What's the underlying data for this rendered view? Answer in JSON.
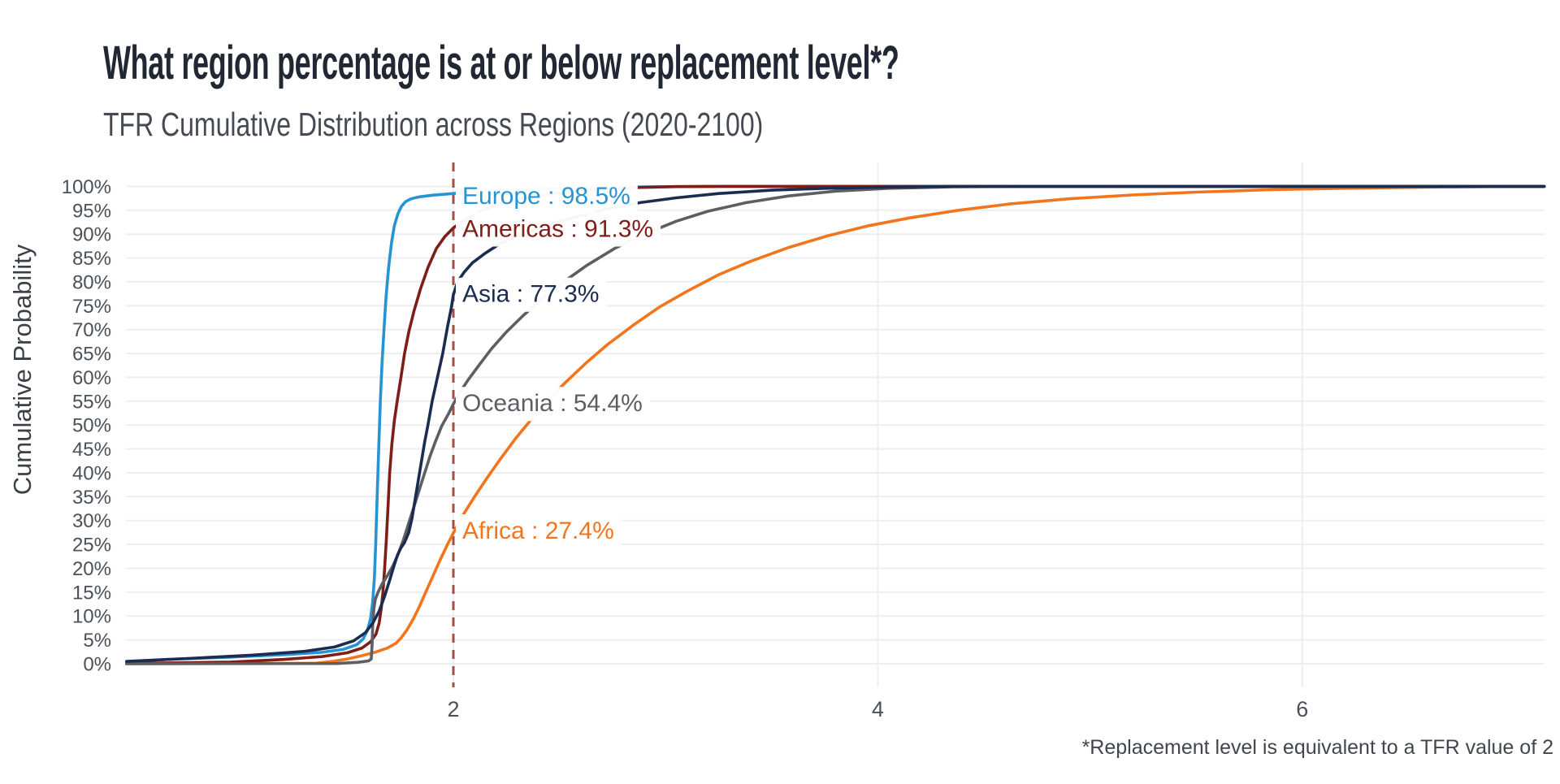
{
  "header": {
    "title": "What region percentage is at or below replacement level*?",
    "subtitle": "TFR Cumulative Distribution across Regions (2020-2100)"
  },
  "footnote": "*Replacement level is equivalent to a TFR value of 2",
  "y_axis": {
    "label": "Cumulative Probability",
    "tick_values": [
      100,
      95,
      90,
      85,
      80,
      75,
      70,
      65,
      60,
      55,
      50,
      45,
      40,
      35,
      30,
      25,
      20,
      15,
      10,
      5,
      0
    ],
    "tick_suffix": "%"
  },
  "x_axis": {
    "tick_values": [
      2,
      4,
      6
    ]
  },
  "reference_line": {
    "x": 2,
    "style": "dashed",
    "color": "#9d5046",
    "meaning": "replacement level TFR = 2"
  },
  "colors": {
    "grid": "#edeef0",
    "tick_text": "#4b5158",
    "axis_title_text": "#3b4047",
    "footnote_text": "#41464d",
    "title_text": "#212733",
    "subtitle_text": "#454a52",
    "background": "#ffffff"
  },
  "chart_data": {
    "type": "line",
    "title": "TFR Cumulative Distribution across Regions (2020-2100)",
    "xlabel": "",
    "ylabel": "Cumulative Probability",
    "xlim": [
      0.46,
      7.14
    ],
    "ylim": [
      0,
      100
    ],
    "x_ticks": [
      2,
      4,
      6
    ],
    "y_tick_step": 5,
    "grid": "horizontal every 5%, vertical at x ticks",
    "legend_position": "inline labels right of reference line",
    "series": [
      {
        "name": "Europe",
        "color": "#2494d3",
        "value_at_replacement": 98.5,
        "label": "Europe : 98.5%",
        "points": [
          [
            0.46,
            0.4
          ],
          [
            0.65,
            0.9
          ],
          [
            0.95,
            1.4
          ],
          [
            1.2,
            1.9
          ],
          [
            1.38,
            2.4
          ],
          [
            1.48,
            3.0
          ],
          [
            1.545,
            4.0
          ],
          [
            1.575,
            5.2
          ],
          [
            1.595,
            7
          ],
          [
            1.61,
            9.5
          ],
          [
            1.62,
            13
          ],
          [
            1.628,
            18
          ],
          [
            1.634,
            25
          ],
          [
            1.64,
            34
          ],
          [
            1.648,
            45
          ],
          [
            1.656,
            55
          ],
          [
            1.664,
            63
          ],
          [
            1.673,
            70
          ],
          [
            1.683,
            77
          ],
          [
            1.695,
            83
          ],
          [
            1.708,
            88
          ],
          [
            1.722,
            91.8
          ],
          [
            1.738,
            94.2
          ],
          [
            1.755,
            95.8
          ],
          [
            1.775,
            96.8
          ],
          [
            1.8,
            97.4
          ],
          [
            1.84,
            97.8
          ],
          [
            1.9,
            98.15
          ],
          [
            2.0,
            98.5
          ],
          [
            2.12,
            98.9
          ],
          [
            2.28,
            99.25
          ],
          [
            2.45,
            99.5
          ],
          [
            2.65,
            99.75
          ],
          [
            2.9,
            99.9
          ],
          [
            3.2,
            100
          ],
          [
            7.14,
            100
          ]
        ]
      },
      {
        "name": "Americas",
        "color": "#7f1e19",
        "value_at_replacement": 91.3,
        "label": "Americas : 91.3%",
        "points": [
          [
            0.46,
            0.05
          ],
          [
            0.95,
            0.35
          ],
          [
            1.2,
            0.9
          ],
          [
            1.38,
            1.5
          ],
          [
            1.5,
            2.3
          ],
          [
            1.57,
            3.3
          ],
          [
            1.61,
            4.6
          ],
          [
            1.635,
            6.2
          ],
          [
            1.65,
            8.5
          ],
          [
            1.66,
            11.5
          ],
          [
            1.668,
            15
          ],
          [
            1.676,
            20
          ],
          [
            1.684,
            26
          ],
          [
            1.692,
            33
          ],
          [
            1.7,
            40
          ],
          [
            1.71,
            46
          ],
          [
            1.722,
            51
          ],
          [
            1.737,
            55.5
          ],
          [
            1.753,
            60
          ],
          [
            1.77,
            65
          ],
          [
            1.79,
            69.5
          ],
          [
            1.815,
            74
          ],
          [
            1.845,
            78.5
          ],
          [
            1.88,
            83
          ],
          [
            1.92,
            87
          ],
          [
            1.96,
            89.5
          ],
          [
            2.0,
            91.3
          ],
          [
            2.06,
            93.2
          ],
          [
            2.13,
            94.9
          ],
          [
            2.22,
            96.3
          ],
          [
            2.33,
            97.5
          ],
          [
            2.47,
            98.5
          ],
          [
            2.62,
            99.2
          ],
          [
            2.8,
            99.7
          ],
          [
            3.05,
            99.95
          ],
          [
            3.3,
            100
          ],
          [
            7.14,
            100
          ]
        ]
      },
      {
        "name": "Asia",
        "color": "#1c2c50",
        "value_at_replacement": 77.3,
        "label": "Asia : 77.3%",
        "points": [
          [
            0.46,
            0.5
          ],
          [
            0.75,
            1.1
          ],
          [
            1.05,
            1.8
          ],
          [
            1.3,
            2.6
          ],
          [
            1.44,
            3.5
          ],
          [
            1.53,
            4.8
          ],
          [
            1.585,
            6.5
          ],
          [
            1.62,
            8.5
          ],
          [
            1.65,
            11
          ],
          [
            1.675,
            14
          ],
          [
            1.7,
            17.5
          ],
          [
            1.72,
            20.5
          ],
          [
            1.737,
            22.8
          ],
          [
            1.753,
            24.3
          ],
          [
            1.77,
            25.4
          ],
          [
            1.79,
            27.5
          ],
          [
            1.805,
            30.5
          ],
          [
            1.82,
            34.5
          ],
          [
            1.835,
            38.5
          ],
          [
            1.85,
            42.5
          ],
          [
            1.865,
            46.5
          ],
          [
            1.88,
            50
          ],
          [
            1.9,
            55
          ],
          [
            1.925,
            60
          ],
          [
            1.95,
            65
          ],
          [
            1.972,
            70.5
          ],
          [
            1.99,
            74.5
          ],
          [
            2.0,
            77.3
          ],
          [
            2.02,
            80
          ],
          [
            2.05,
            82
          ],
          [
            2.09,
            84
          ],
          [
            2.15,
            86
          ],
          [
            2.22,
            88
          ],
          [
            2.32,
            90
          ],
          [
            2.45,
            92
          ],
          [
            2.58,
            93.6
          ],
          [
            2.72,
            95.2
          ],
          [
            2.88,
            96.6
          ],
          [
            3.05,
            97.6
          ],
          [
            3.25,
            98.5
          ],
          [
            3.5,
            99.2
          ],
          [
            3.75,
            99.6
          ],
          [
            4.05,
            99.85
          ],
          [
            4.4,
            100
          ],
          [
            7.14,
            100
          ]
        ]
      },
      {
        "name": "Oceania",
        "color": "#5b5f63",
        "value_at_replacement": 54.4,
        "label": "Oceania : 54.4%",
        "points": [
          [
            0.46,
            0
          ],
          [
            1.45,
            0.05
          ],
          [
            1.55,
            0.3
          ],
          [
            1.6,
            0.6
          ],
          [
            1.613,
            1
          ],
          [
            1.617,
            4
          ],
          [
            1.62,
            8
          ],
          [
            1.625,
            11.5
          ],
          [
            1.632,
            13.5
          ],
          [
            1.645,
            15
          ],
          [
            1.665,
            16.8
          ],
          [
            1.69,
            18.5
          ],
          [
            1.715,
            20.5
          ],
          [
            1.74,
            23
          ],
          [
            1.765,
            26
          ],
          [
            1.79,
            29.5
          ],
          [
            1.815,
            33
          ],
          [
            1.84,
            36.5
          ],
          [
            1.865,
            40
          ],
          [
            1.89,
            43.5
          ],
          [
            1.915,
            46.5
          ],
          [
            1.945,
            49.8
          ],
          [
            1.975,
            52.2
          ],
          [
            2.0,
            54.4
          ],
          [
            2.03,
            56.8
          ],
          [
            2.07,
            59.5
          ],
          [
            2.12,
            62.5
          ],
          [
            2.18,
            66
          ],
          [
            2.25,
            69.5
          ],
          [
            2.33,
            73
          ],
          [
            2.42,
            76.5
          ],
          [
            2.52,
            80
          ],
          [
            2.63,
            83.5
          ],
          [
            2.76,
            87
          ],
          [
            2.9,
            90
          ],
          [
            3.05,
            92.7
          ],
          [
            3.2,
            94.8
          ],
          [
            3.38,
            96.6
          ],
          [
            3.58,
            98
          ],
          [
            3.8,
            99
          ],
          [
            4.05,
            99.6
          ],
          [
            4.35,
            99.9
          ],
          [
            4.7,
            100
          ],
          [
            7.14,
            100
          ]
        ]
      },
      {
        "name": "Africa",
        "color": "#f1751c",
        "value_at_replacement": 27.4,
        "label": "Africa : 27.4%",
        "points": [
          [
            0.46,
            0
          ],
          [
            1.35,
            0.1
          ],
          [
            1.43,
            0.5
          ],
          [
            1.5,
            1.0
          ],
          [
            1.57,
            1.7
          ],
          [
            1.63,
            2.4
          ],
          [
            1.69,
            3.3
          ],
          [
            1.73,
            4.3
          ],
          [
            1.755,
            5.5
          ],
          [
            1.78,
            7
          ],
          [
            1.81,
            9.3
          ],
          [
            1.84,
            12
          ],
          [
            1.87,
            15
          ],
          [
            1.9,
            18
          ],
          [
            1.935,
            21.5
          ],
          [
            1.97,
            24.8
          ],
          [
            2.0,
            27.4
          ],
          [
            2.05,
            31.5
          ],
          [
            2.1,
            35
          ],
          [
            2.16,
            39
          ],
          [
            2.22,
            42.8
          ],
          [
            2.29,
            47
          ],
          [
            2.36,
            50.8
          ],
          [
            2.44,
            55
          ],
          [
            2.53,
            59
          ],
          [
            2.63,
            63.2
          ],
          [
            2.73,
            67
          ],
          [
            2.85,
            71
          ],
          [
            2.97,
            74.7
          ],
          [
            3.1,
            78
          ],
          [
            3.25,
            81.5
          ],
          [
            3.4,
            84.3
          ],
          [
            3.58,
            87.2
          ],
          [
            3.76,
            89.6
          ],
          [
            3.95,
            91.7
          ],
          [
            4.15,
            93.4
          ],
          [
            4.38,
            95
          ],
          [
            4.62,
            96.3
          ],
          [
            4.9,
            97.4
          ],
          [
            5.2,
            98.2
          ],
          [
            5.5,
            98.8
          ],
          [
            5.85,
            99.3
          ],
          [
            6.2,
            99.6
          ],
          [
            6.6,
            99.85
          ],
          [
            7.0,
            100
          ],
          [
            7.14,
            100
          ]
        ]
      }
    ]
  }
}
